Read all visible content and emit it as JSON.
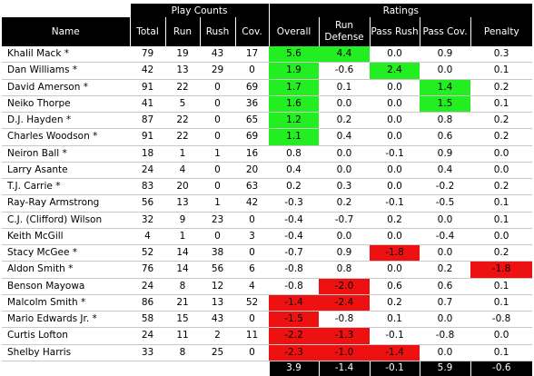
{
  "group_headers": {
    "play_counts": "Play Counts",
    "ratings": "Ratings"
  },
  "columns": [
    "Name",
    "Total",
    "Run",
    "Rush",
    "Cov.",
    "Overall",
    "Run Defense",
    "Pass Rush",
    "Pass Cov.",
    "Penalty"
  ],
  "colors": {
    "positive": "#22ee22",
    "negative": "#ee1111",
    "header_bg": "#000000"
  },
  "rows": [
    {
      "name": "Khalil Mack *",
      "total": "79",
      "run": "19",
      "rush": "43",
      "cov": "17",
      "overall": "5.6",
      "run_def": "4.4",
      "pass_rush": "0.0",
      "pass_cov": "0.9",
      "penalty": "0.3",
      "hl": {
        "overall": "g",
        "run_def": "g"
      }
    },
    {
      "name": "Dan Williams *",
      "total": "42",
      "run": "13",
      "rush": "29",
      "cov": "0",
      "overall": "1.9",
      "run_def": "-0.6",
      "pass_rush": "2.4",
      "pass_cov": "0.0",
      "penalty": "0.1",
      "hl": {
        "overall": "g",
        "pass_rush": "g"
      }
    },
    {
      "name": "David Amerson *",
      "total": "91",
      "run": "22",
      "rush": "0",
      "cov": "69",
      "overall": "1.7",
      "run_def": "0.1",
      "pass_rush": "0.0",
      "pass_cov": "1.4",
      "penalty": "0.2",
      "hl": {
        "overall": "g",
        "pass_cov": "g"
      }
    },
    {
      "name": "Neiko Thorpe",
      "total": "41",
      "run": "5",
      "rush": "0",
      "cov": "36",
      "overall": "1.6",
      "run_def": "0.0",
      "pass_rush": "0.0",
      "pass_cov": "1.5",
      "penalty": "0.1",
      "hl": {
        "overall": "g",
        "pass_cov": "g"
      }
    },
    {
      "name": "D.J. Hayden *",
      "total": "87",
      "run": "22",
      "rush": "0",
      "cov": "65",
      "overall": "1.2",
      "run_def": "0.2",
      "pass_rush": "0.0",
      "pass_cov": "0.8",
      "penalty": "0.2",
      "hl": {
        "overall": "g"
      }
    },
    {
      "name": "Charles Woodson *",
      "total": "91",
      "run": "22",
      "rush": "0",
      "cov": "69",
      "overall": "1.1",
      "run_def": "0.4",
      "pass_rush": "0.0",
      "pass_cov": "0.6",
      "penalty": "0.2",
      "hl": {
        "overall": "g"
      }
    },
    {
      "name": "Neiron Ball *",
      "total": "18",
      "run": "1",
      "rush": "1",
      "cov": "16",
      "overall": "0.8",
      "run_def": "0.0",
      "pass_rush": "-0.1",
      "pass_cov": "0.9",
      "penalty": "0.0",
      "hl": {}
    },
    {
      "name": "Larry Asante",
      "total": "24",
      "run": "4",
      "rush": "0",
      "cov": "20",
      "overall": "0.4",
      "run_def": "0.0",
      "pass_rush": "0.0",
      "pass_cov": "0.4",
      "penalty": "0.0",
      "hl": {}
    },
    {
      "name": "T.J. Carrie *",
      "total": "83",
      "run": "20",
      "rush": "0",
      "cov": "63",
      "overall": "0.2",
      "run_def": "0.3",
      "pass_rush": "0.0",
      "pass_cov": "-0.2",
      "penalty": "0.2",
      "hl": {}
    },
    {
      "name": "Ray-Ray Armstrong",
      "total": "56",
      "run": "13",
      "rush": "1",
      "cov": "42",
      "overall": "-0.3",
      "run_def": "0.2",
      "pass_rush": "-0.1",
      "pass_cov": "-0.5",
      "penalty": "0.1",
      "hl": {}
    },
    {
      "name": "C.J. (Clifford) Wilson",
      "total": "32",
      "run": "9",
      "rush": "23",
      "cov": "0",
      "overall": "-0.4",
      "run_def": "-0.7",
      "pass_rush": "0.2",
      "pass_cov": "0.0",
      "penalty": "0.1",
      "hl": {}
    },
    {
      "name": "Keith McGill",
      "total": "4",
      "run": "1",
      "rush": "0",
      "cov": "3",
      "overall": "-0.4",
      "run_def": "0.0",
      "pass_rush": "0.0",
      "pass_cov": "-0.4",
      "penalty": "0.0",
      "hl": {}
    },
    {
      "name": "Stacy McGee *",
      "total": "52",
      "run": "14",
      "rush": "38",
      "cov": "0",
      "overall": "-0.7",
      "run_def": "0.9",
      "pass_rush": "-1.8",
      "pass_cov": "0.0",
      "penalty": "0.2",
      "hl": {
        "pass_rush": "r"
      }
    },
    {
      "name": "Aldon Smith *",
      "total": "76",
      "run": "14",
      "rush": "56",
      "cov": "6",
      "overall": "-0.8",
      "run_def": "0.8",
      "pass_rush": "0.0",
      "pass_cov": "0.2",
      "penalty": "-1.8",
      "hl": {
        "penalty": "r"
      }
    },
    {
      "name": "Benson Mayowa",
      "total": "24",
      "run": "8",
      "rush": "12",
      "cov": "4",
      "overall": "-0.8",
      "run_def": "-2.0",
      "pass_rush": "0.6",
      "pass_cov": "0.6",
      "penalty": "0.1",
      "hl": {
        "run_def": "r"
      }
    },
    {
      "name": "Malcolm Smith *",
      "total": "86",
      "run": "21",
      "rush": "13",
      "cov": "52",
      "overall": "-1.4",
      "run_def": "-2.4",
      "pass_rush": "0.2",
      "pass_cov": "0.7",
      "penalty": "0.1",
      "hl": {
        "overall": "r",
        "run_def": "r"
      }
    },
    {
      "name": "Mario Edwards Jr. *",
      "total": "58",
      "run": "15",
      "rush": "43",
      "cov": "0",
      "overall": "-1.5",
      "run_def": "-0.8",
      "pass_rush": "0.1",
      "pass_cov": "0.0",
      "penalty": "-0.8",
      "hl": {
        "overall": "r"
      }
    },
    {
      "name": "Curtis Lofton",
      "total": "24",
      "run": "11",
      "rush": "2",
      "cov": "11",
      "overall": "-2.2",
      "run_def": "-1.3",
      "pass_rush": "-0.1",
      "pass_cov": "-0.8",
      "penalty": "0.0",
      "hl": {
        "overall": "r",
        "run_def": "r"
      }
    },
    {
      "name": "Shelby Harris",
      "total": "33",
      "run": "8",
      "rush": "25",
      "cov": "0",
      "overall": "-2.3",
      "run_def": "-1.0",
      "pass_rush": "-1.4",
      "pass_cov": "0.0",
      "penalty": "0.1",
      "hl": {
        "overall": "r",
        "run_def": "r",
        "pass_rush": "r"
      }
    }
  ],
  "totals": {
    "overall": "3.9",
    "run_def": "-1.4",
    "pass_rush": "-0.1",
    "pass_cov": "5.9",
    "penalty": "-0.6"
  }
}
